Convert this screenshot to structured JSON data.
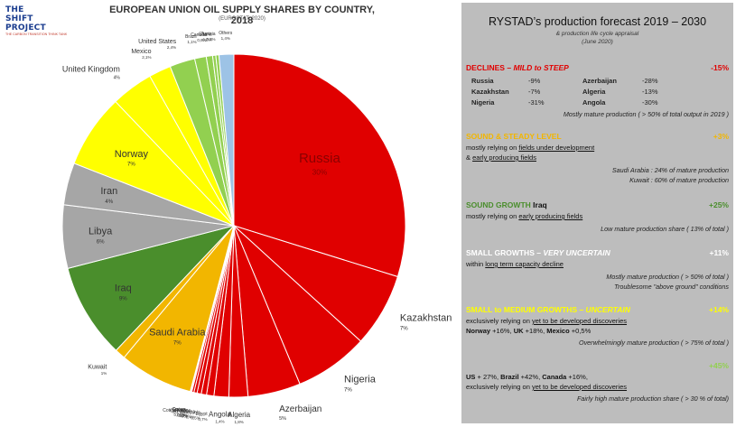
{
  "logo": {
    "line1": "THE SHIFT",
    "line2": "PROJECT",
    "tagline": "THE CARBON TRANSITION THINK TANK"
  },
  "chart_data": {
    "type": "pie",
    "title": "EUROPEAN UNION OIL SUPPLY SHARES BY COUNTRY, 2018",
    "subtitle": "(EUROSTAT, 2020)",
    "slices": [
      {
        "label": "Russia",
        "value": 30,
        "pct": "30%",
        "color": "#e00000"
      },
      {
        "label": "Kazakhstan",
        "value": 7,
        "pct": "7%",
        "color": "#e00000"
      },
      {
        "label": "Nigeria",
        "value": 7,
        "pct": "7%",
        "color": "#e00000"
      },
      {
        "label": "Azerbaijan",
        "value": 5,
        "pct": "5%",
        "color": "#e00000"
      },
      {
        "label": "Algeria",
        "value": 1.8,
        "pct": "1,8%",
        "color": "#e00000"
      },
      {
        "label": "Angola",
        "value": 1.4,
        "pct": "1,4%",
        "color": "#e00000"
      },
      {
        "label": "Egypt",
        "value": 0.7,
        "pct": "0,7%",
        "color": "#e00000"
      },
      {
        "label": "Venezuela",
        "value": 0.5,
        "pct": "0,5%",
        "color": "#e00000"
      },
      {
        "label": "Eq. Guinea",
        "value": 0.4,
        "pct": "0,4%",
        "color": "#e00000"
      },
      {
        "label": "Cameroon",
        "value": 0.3,
        "pct": "0,3%",
        "color": "#e00000"
      },
      {
        "label": "Cote d'Ivoire",
        "value": 0.2,
        "pct": "0,2%",
        "color": "#e00000"
      },
      {
        "label": "Gabon",
        "value": 0.1,
        "pct": "0,1%",
        "color": "#e00000"
      },
      {
        "label": "Congo",
        "value": 0.05,
        "pct": "0,05%",
        "color": "#e00000"
      },
      {
        "label": "Saudi Arabia",
        "value": 7,
        "pct": "7%",
        "color": "#f2b600"
      },
      {
        "label": "Kuwait",
        "value": 1,
        "pct": "1%",
        "color": "#f2b600"
      },
      {
        "label": "Iraq",
        "value": 9,
        "pct": "9%",
        "color": "#4a8e2c"
      },
      {
        "label": "Libya",
        "value": 6,
        "pct": "6%",
        "color": "#a6a6a6"
      },
      {
        "label": "Iran",
        "value": 4,
        "pct": "4%",
        "color": "#a6a6a6"
      },
      {
        "label": "Norway",
        "value": 7,
        "pct": "7%",
        "color": "#ffff00"
      },
      {
        "label": "United Kingdom",
        "value": 4,
        "pct": "4%",
        "color": "#ffff00"
      },
      {
        "label": "Mexico",
        "value": 2.1,
        "pct": "2,1%",
        "color": "#ffff00"
      },
      {
        "label": "United States",
        "value": 2.4,
        "pct": "2,4%",
        "color": "#92d050"
      },
      {
        "label": "Brazil",
        "value": 1.1,
        "pct": "1,1%",
        "color": "#92d050"
      },
      {
        "label": "Canada",
        "value": 0.6,
        "pct": "0,6%",
        "color": "#92d050"
      },
      {
        "label": "Ghana",
        "value": 0.3,
        "pct": "0,3%",
        "color": "#92d050"
      },
      {
        "label": "Tunisia",
        "value": 0.3,
        "pct": "0,3%",
        "color": "#92d050"
      },
      {
        "label": "Others",
        "value": 1.4,
        "pct": "1,4%",
        "color": "#9dc3e6"
      }
    ]
  },
  "panel": {
    "title": "RYSTAD’s production forecast 2019 – 2030",
    "subtitle1": "& production life cycle appraisal",
    "subtitle2": "(June 2020)",
    "declines": {
      "title": "DECLINES",
      "qualifier": "– MILD to STEEP",
      "pct": "-15%",
      "color": "#e00000",
      "rows": [
        {
          "c1": "Russia",
          "v1": "-9%",
          "c2": "Azerbaijan",
          "v2": "-28%"
        },
        {
          "c1": "Kazakhstan",
          "v1": "-7%",
          "c2": "Algeria",
          "v2": "-13%"
        },
        {
          "c1": "Nigeria",
          "v1": "-31%",
          "c2": "Angola",
          "v2": "-30%"
        }
      ],
      "note": "Mostly mature production ( > 50% of total output in 2019 )"
    },
    "sound_steady": {
      "title": "SOUND & STEADY LEVEL",
      "pct": "+3%",
      "color": "#f2b600",
      "line1_pre": "mostly relying on ",
      "line1_u": "fields under development",
      "line2_pre": "& ",
      "line2_u": "early producing fields",
      "note1": "Saudi Arabia : 24% of mature production",
      "note2": "Kuwait : 60% of mature production"
    },
    "sound_growth": {
      "title": "SOUND GROWTH",
      "country": "Iraq",
      "pct": "+25%",
      "color": "#4a8e2c",
      "line_pre": "mostly relying on ",
      "line_u": "early producing fields",
      "note": "Low mature production share ( 13% of total )"
    },
    "small_growths": {
      "title": "SMALL GROWTHS",
      "qualifier": "– VERY UNCERTAIN",
      "pct": "+11%",
      "color": "#a6a6a6",
      "line_pre": "within ",
      "line_u": "long term capacity decline",
      "note1": "Mostly mature production ( > 50% of total )",
      "note2": "Troublesome \"above ground\" conditions"
    },
    "small_medium": {
      "title": "SMALL to MEDIUM GROWTHS",
      "qualifier": "– UNCERTAIN",
      "pct": "+14%",
      "color": "#ffff00",
      "line_pre": "exclusively relying on ",
      "line_u": "yet to be developed discoveries",
      "c1": "Norway",
      "v1": " +16%, ",
      "c2": "UK",
      "v2": " +18%, ",
      "c3": "Mexico",
      "v3": " +0,5%",
      "note": "Overwhelmingly mature production ( > 75% of total )"
    },
    "green": {
      "pct": "+45%",
      "color": "#92d050",
      "c1": "US",
      "v1": " + 27%, ",
      "c2": "Brazil",
      "v2": " +42%, ",
      "c3": "Canada",
      "v3": " +16%,",
      "line_pre": "exclusively relying on ",
      "line_u": "yet to be developed discoveries",
      "note": "Fairly high mature production share ( > 30 % of total)"
    }
  }
}
